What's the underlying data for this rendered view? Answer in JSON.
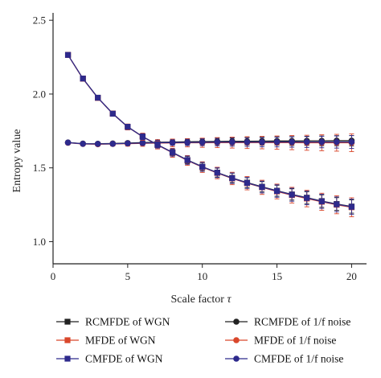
{
  "chart_data": {
    "type": "line",
    "xlabel": "Scale factor τ",
    "ylabel": "Entropy value",
    "xlim": [
      0,
      21
    ],
    "ylim": [
      0.85,
      2.55
    ],
    "xticks": [
      0,
      5,
      10,
      15,
      20
    ],
    "yticks": [
      1.0,
      1.5,
      2.0,
      2.5
    ],
    "ytick_labels": [
      "1.0",
      "1.5",
      "2.0",
      "2.5"
    ],
    "x": [
      1,
      2,
      3,
      4,
      5,
      6,
      7,
      8,
      9,
      10,
      11,
      12,
      13,
      14,
      15,
      16,
      17,
      18,
      19,
      20
    ],
    "legend_position": "bottom",
    "grid": false,
    "series": [
      {
        "name": "RCMFDE of WGN",
        "color": "#222222",
        "marker": "square",
        "values": [
          2.265,
          2.105,
          1.975,
          1.868,
          1.778,
          1.712,
          1.657,
          1.605,
          1.553,
          1.508,
          1.468,
          1.432,
          1.4,
          1.372,
          1.345,
          1.32,
          1.298,
          1.275,
          1.255,
          1.238
        ],
        "error": [
          0.005,
          0.008,
          0.01,
          0.012,
          0.015,
          0.017,
          0.02,
          0.022,
          0.025,
          0.027,
          0.03,
          0.032,
          0.033,
          0.035,
          0.037,
          0.038,
          0.04,
          0.042,
          0.043,
          0.045
        ]
      },
      {
        "name": "MFDE of WGN",
        "color": "#d9472b",
        "marker": "square",
        "values": [
          2.265,
          2.104,
          1.974,
          1.867,
          1.777,
          1.711,
          1.655,
          1.602,
          1.55,
          1.505,
          1.465,
          1.428,
          1.396,
          1.368,
          1.34,
          1.315,
          1.292,
          1.27,
          1.25,
          1.233
        ],
        "error": [
          0.006,
          0.01,
          0.014,
          0.017,
          0.02,
          0.024,
          0.027,
          0.03,
          0.033,
          0.036,
          0.039,
          0.042,
          0.045,
          0.048,
          0.05,
          0.053,
          0.056,
          0.058,
          0.061,
          0.064
        ]
      },
      {
        "name": "CMFDE of WGN",
        "color": "#2e2a8c",
        "marker": "square",
        "values": [
          2.265,
          2.105,
          1.975,
          1.867,
          1.778,
          1.711,
          1.656,
          1.604,
          1.552,
          1.507,
          1.467,
          1.43,
          1.398,
          1.37,
          1.343,
          1.318,
          1.296,
          1.273,
          1.253,
          1.236
        ],
        "error": [
          0.005,
          0.009,
          0.012,
          0.014,
          0.017,
          0.02,
          0.022,
          0.025,
          0.028,
          0.03,
          0.033,
          0.035,
          0.037,
          0.04,
          0.042,
          0.044,
          0.046,
          0.048,
          0.05,
          0.052
        ]
      },
      {
        "name": "RCMFDE of 1/f noise",
        "color": "#222222",
        "marker": "circle",
        "values": [
          1.672,
          1.664,
          1.663,
          1.665,
          1.668,
          1.671,
          1.673,
          1.675,
          1.677,
          1.678,
          1.679,
          1.68,
          1.68,
          1.681,
          1.682,
          1.682,
          1.683,
          1.683,
          1.684,
          1.684
        ],
        "error": [
          0.004,
          0.006,
          0.008,
          0.01,
          0.012,
          0.014,
          0.016,
          0.018,
          0.019,
          0.021,
          0.022,
          0.024,
          0.025,
          0.027,
          0.028,
          0.03,
          0.031,
          0.033,
          0.034,
          0.035
        ]
      },
      {
        "name": "MFDE of 1/f noise",
        "color": "#d9472b",
        "marker": "circle",
        "values": [
          1.67,
          1.662,
          1.66,
          1.662,
          1.664,
          1.666,
          1.668,
          1.669,
          1.67,
          1.67,
          1.671,
          1.671,
          1.671,
          1.671,
          1.671,
          1.671,
          1.67,
          1.67,
          1.67,
          1.67
        ],
        "error": [
          0.005,
          0.008,
          0.011,
          0.014,
          0.017,
          0.02,
          0.023,
          0.026,
          0.028,
          0.031,
          0.034,
          0.037,
          0.04,
          0.042,
          0.045,
          0.048,
          0.051,
          0.054,
          0.057,
          0.06
        ]
      },
      {
        "name": "CMFDE of 1/f noise",
        "color": "#2e2a8c",
        "marker": "circle",
        "values": [
          1.671,
          1.663,
          1.662,
          1.663,
          1.666,
          1.668,
          1.67,
          1.671,
          1.672,
          1.673,
          1.674,
          1.674,
          1.674,
          1.674,
          1.675,
          1.675,
          1.675,
          1.675,
          1.675,
          1.675
        ],
        "error": [
          0.004,
          0.007,
          0.009,
          0.011,
          0.013,
          0.015,
          0.017,
          0.019,
          0.021,
          0.023,
          0.025,
          0.027,
          0.029,
          0.031,
          0.033,
          0.035,
          0.037,
          0.039,
          0.041,
          0.043
        ]
      }
    ]
  }
}
